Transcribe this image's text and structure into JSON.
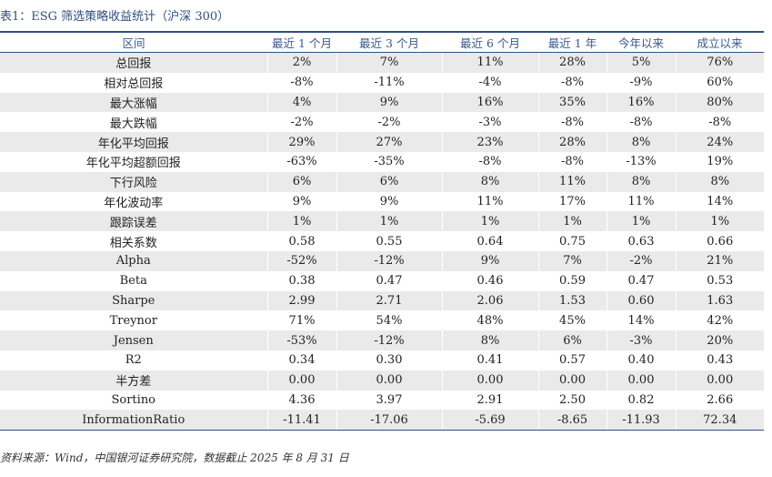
{
  "title": "表1：ESG 筛选策略收益统计（沪深 300）",
  "headers": [
    "区间",
    "最近 1 个月",
    "最近 3 个月",
    "最近 6 个月",
    "最近 1 年",
    "今年以来",
    "成立以来"
  ],
  "rows": [
    [
      "总回报",
      "2%",
      "7%",
      "11%",
      "28%",
      "5%",
      "76%"
    ],
    [
      "相对总回报",
      "-8%",
      "-11%",
      "-4%",
      "-8%",
      "-9%",
      "60%"
    ],
    [
      "最大涨幅",
      "4%",
      "9%",
      "16%",
      "35%",
      "16%",
      "80%"
    ],
    [
      "最大跌幅",
      "-2%",
      "-2%",
      "-3%",
      "-8%",
      "-8%",
      "-8%"
    ],
    [
      "年化平均回报",
      "29%",
      "27%",
      "23%",
      "28%",
      "8%",
      "24%"
    ],
    [
      "年化平均超额回报",
      "-63%",
      "-35%",
      "-8%",
      "-8%",
      "-13%",
      "19%"
    ],
    [
      "下行风险",
      "6%",
      "6%",
      "8%",
      "11%",
      "8%",
      "8%"
    ],
    [
      "年化波动率",
      "9%",
      "9%",
      "11%",
      "17%",
      "11%",
      "14%"
    ],
    [
      "跟踪误差",
      "1%",
      "1%",
      "1%",
      "1%",
      "1%",
      "1%"
    ],
    [
      "相关系数",
      "0.58",
      "0.55",
      "0.64",
      "0.75",
      "0.63",
      "0.66"
    ],
    [
      "Alpha",
      "-52%",
      "-12%",
      "9%",
      "7%",
      "-2%",
      "21%"
    ],
    [
      "Beta",
      "0.38",
      "0.47",
      "0.46",
      "0.59",
      "0.47",
      "0.53"
    ],
    [
      "Sharpe",
      "2.99",
      "2.71",
      "2.06",
      "1.53",
      "0.60",
      "1.63"
    ],
    [
      "Treynor",
      "71%",
      "54%",
      "48%",
      "45%",
      "14%",
      "42%"
    ],
    [
      "Jensen",
      "-53%",
      "-12%",
      "8%",
      "6%",
      "-3%",
      "20%"
    ],
    [
      "R2",
      "0.34",
      "0.30",
      "0.41",
      "0.57",
      "0.40",
      "0.43"
    ],
    [
      "半方差",
      "0.00",
      "0.00",
      "0.00",
      "0.00",
      "0.00",
      "0.00"
    ],
    [
      "Sortino",
      "4.36",
      "3.97",
      "2.91",
      "2.50",
      "0.82",
      "2.66"
    ],
    [
      "InformationRatio",
      "-11.41",
      "-17.06",
      "-5.69",
      "-8.65",
      "-11.93",
      "72.34"
    ]
  ],
  "source": "资料来源：Wind，中国银河证券研究院，数据截止 2025 年 8 月 31 日",
  "colors": {
    "accent": "#2f4f7f",
    "stripe": "#eaeaea"
  }
}
